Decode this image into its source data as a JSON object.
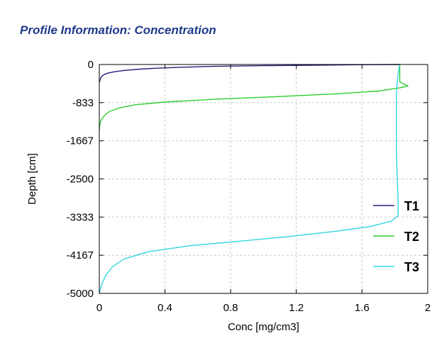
{
  "panel": {
    "title": "Profile Information:  Concentration"
  },
  "chart_data": {
    "type": "line",
    "title": "Profile Information:  Concentration",
    "xlabel": "Conc [mg/cm3]",
    "ylabel": "Depth [cm]",
    "xlim": [
      0,
      2
    ],
    "ylim": [
      -5000,
      0
    ],
    "xticks": [
      "0",
      "0.4",
      "0.8",
      "1.2",
      "1.6",
      "2"
    ],
    "yticks": [
      "0",
      "-833",
      "-1667",
      "-2500",
      "-3333",
      "-4167",
      "-5000"
    ],
    "grid": true,
    "legend_position": "bottom-right",
    "series": [
      {
        "name": "T1",
        "color": "#1f1f7a",
        "points": [
          [
            1.83,
            0
          ],
          [
            1.6,
            -5
          ],
          [
            1.3,
            -15
          ],
          [
            1.0,
            -25
          ],
          [
            0.7,
            -40
          ],
          [
            0.5,
            -60
          ],
          [
            0.35,
            -80
          ],
          [
            0.25,
            -100
          ],
          [
            0.15,
            -130
          ],
          [
            0.09,
            -160
          ],
          [
            0.05,
            -190
          ],
          [
            0.03,
            -220
          ],
          [
            0.015,
            -260
          ],
          [
            0.008,
            -300
          ],
          [
            0.003,
            -350
          ],
          [
            0,
            -400
          ]
        ]
      },
      {
        "name": "T2",
        "color": "#2ecc2e",
        "points": [
          [
            1.83,
            0
          ],
          [
            1.83,
            -150
          ],
          [
            1.83,
            -300
          ],
          [
            1.83,
            -380
          ],
          [
            1.85,
            -420
          ],
          [
            1.88,
            -470
          ],
          [
            1.83,
            -510
          ],
          [
            1.7,
            -580
          ],
          [
            1.45,
            -640
          ],
          [
            1.1,
            -700
          ],
          [
            0.7,
            -760
          ],
          [
            0.4,
            -820
          ],
          [
            0.22,
            -880
          ],
          [
            0.12,
            -950
          ],
          [
            0.06,
            -1030
          ],
          [
            0.03,
            -1120
          ],
          [
            0.01,
            -1220
          ],
          [
            0.003,
            -1320
          ],
          [
            0,
            -1450
          ]
        ]
      },
      {
        "name": "T3",
        "color": "#33d6e0",
        "points": [
          [
            1.83,
            0
          ],
          [
            1.82,
            -200
          ],
          [
            1.81,
            -600
          ],
          [
            1.81,
            -1000
          ],
          [
            1.81,
            -2000
          ],
          [
            1.82,
            -3000
          ],
          [
            1.82,
            -3300
          ],
          [
            1.78,
            -3420
          ],
          [
            1.65,
            -3540
          ],
          [
            1.45,
            -3640
          ],
          [
            1.15,
            -3760
          ],
          [
            0.85,
            -3860
          ],
          [
            0.55,
            -3960
          ],
          [
            0.3,
            -4090
          ],
          [
            0.15,
            -4250
          ],
          [
            0.08,
            -4420
          ],
          [
            0.04,
            -4600
          ],
          [
            0.015,
            -4800
          ],
          [
            0,
            -5000
          ]
        ]
      }
    ]
  }
}
